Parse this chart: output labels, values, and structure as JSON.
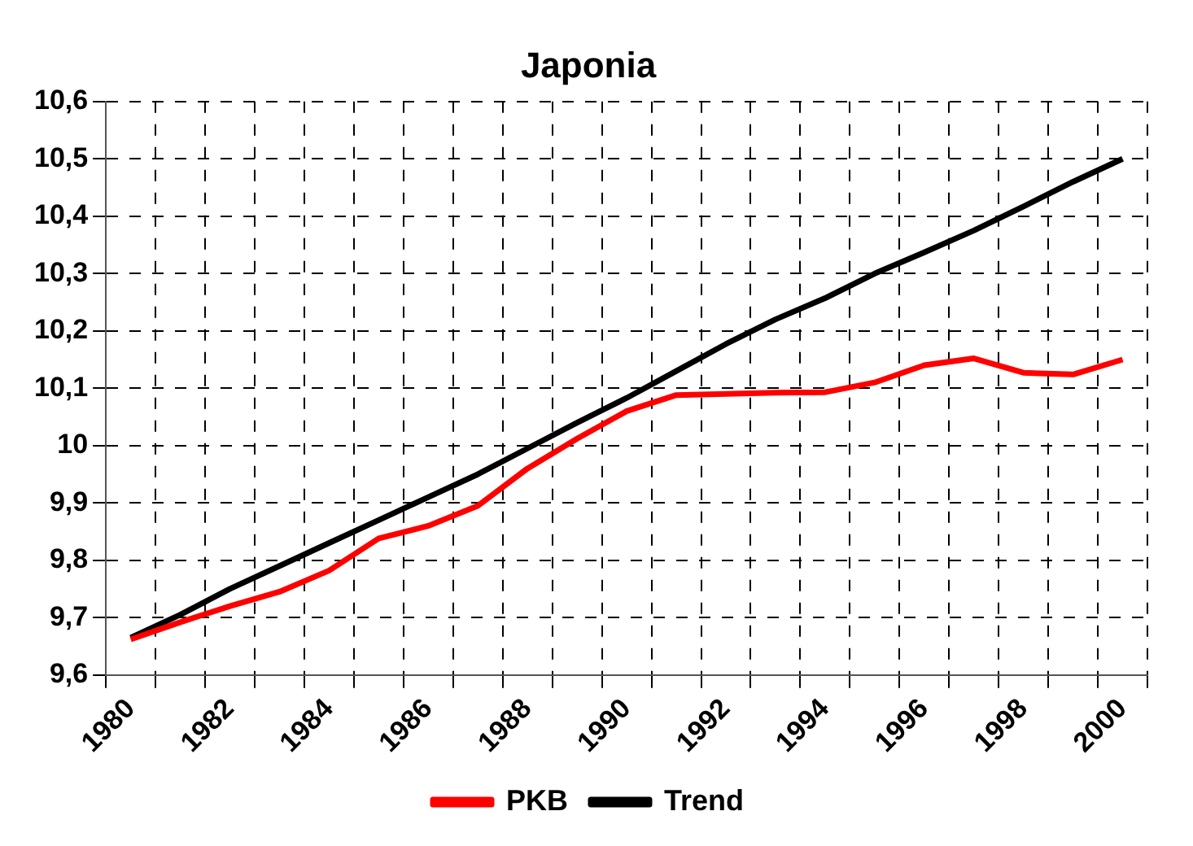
{
  "chart_data": {
    "type": "line",
    "title": "Japonia",
    "categories": [
      "1980",
      null,
      "1982",
      null,
      "1984",
      null,
      "1986",
      null,
      "1988",
      null,
      "1990",
      null,
      "1992",
      null,
      "1994",
      null,
      "1996",
      null,
      "1998",
      null,
      "2000"
    ],
    "series": [
      {
        "name": "PKB",
        "color": "#ff0000",
        "values": [
          9.662,
          9.692,
          9.72,
          9.745,
          9.782,
          9.838,
          9.86,
          9.895,
          9.96,
          10.012,
          10.06,
          10.088,
          10.09,
          10.092,
          10.093,
          10.11,
          10.14,
          10.152,
          10.127,
          10.124,
          10.15
        ]
      },
      {
        "name": "Trend",
        "color": "#000000",
        "values": [
          9.665,
          9.705,
          9.75,
          9.79,
          9.83,
          9.87,
          9.91,
          9.95,
          9.995,
          10.04,
          10.083,
          10.13,
          10.177,
          10.22,
          10.257,
          10.3,
          10.337,
          10.375,
          10.417,
          10.46,
          10.5
        ]
      }
    ],
    "ylim": [
      9.6,
      10.6
    ],
    "yticks": [
      {
        "value": 9.6,
        "label": "9,6"
      },
      {
        "value": 9.7,
        "label": "9,7"
      },
      {
        "value": 9.8,
        "label": "9,8"
      },
      {
        "value": 9.9,
        "label": "9,9"
      },
      10,
      {
        "value": 10.1,
        "label": "10,1"
      },
      {
        "value": 10.2,
        "label": "10,2"
      },
      {
        "value": 10.3,
        "label": "10,3"
      },
      {
        "value": 10.4,
        "label": "10,4"
      },
      {
        "value": 10.5,
        "label": "10,5"
      },
      {
        "value": 10.6,
        "label": "10,6"
      }
    ],
    "grid": true,
    "legend": "bottom",
    "marker": "none",
    "line_style": "solid"
  }
}
